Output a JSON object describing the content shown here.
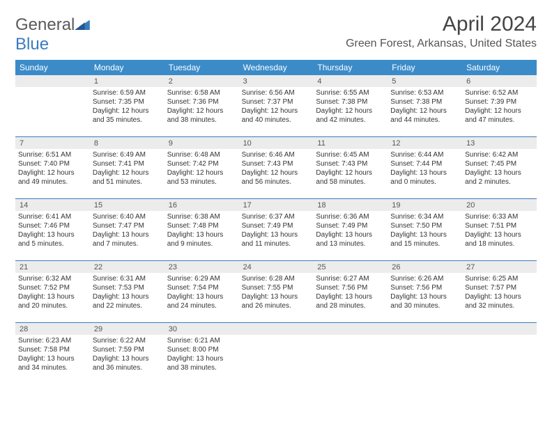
{
  "brand": {
    "name_general": "General",
    "name_blue": "Blue"
  },
  "title": {
    "month": "April 2024",
    "location": "Green Forest, Arkansas, United States"
  },
  "colors": {
    "header_bg": "#3b8bc9",
    "header_fg": "#ffffff",
    "daynum_bg": "#ececec",
    "border": "#3b7bbf",
    "logo_blue": "#3b7bbf",
    "text": "#333333"
  },
  "dayNames": [
    "Sunday",
    "Monday",
    "Tuesday",
    "Wednesday",
    "Thursday",
    "Friday",
    "Saturday"
  ],
  "weeks": [
    [
      {
        "n": "",
        "sr": "",
        "ss": "",
        "dl": ""
      },
      {
        "n": "1",
        "sr": "6:59 AM",
        "ss": "7:35 PM",
        "dl": "12 hours and 35 minutes."
      },
      {
        "n": "2",
        "sr": "6:58 AM",
        "ss": "7:36 PM",
        "dl": "12 hours and 38 minutes."
      },
      {
        "n": "3",
        "sr": "6:56 AM",
        "ss": "7:37 PM",
        "dl": "12 hours and 40 minutes."
      },
      {
        "n": "4",
        "sr": "6:55 AM",
        "ss": "7:38 PM",
        "dl": "12 hours and 42 minutes."
      },
      {
        "n": "5",
        "sr": "6:53 AM",
        "ss": "7:38 PM",
        "dl": "12 hours and 44 minutes."
      },
      {
        "n": "6",
        "sr": "6:52 AM",
        "ss": "7:39 PM",
        "dl": "12 hours and 47 minutes."
      }
    ],
    [
      {
        "n": "7",
        "sr": "6:51 AM",
        "ss": "7:40 PM",
        "dl": "12 hours and 49 minutes."
      },
      {
        "n": "8",
        "sr": "6:49 AM",
        "ss": "7:41 PM",
        "dl": "12 hours and 51 minutes."
      },
      {
        "n": "9",
        "sr": "6:48 AM",
        "ss": "7:42 PM",
        "dl": "12 hours and 53 minutes."
      },
      {
        "n": "10",
        "sr": "6:46 AM",
        "ss": "7:43 PM",
        "dl": "12 hours and 56 minutes."
      },
      {
        "n": "11",
        "sr": "6:45 AM",
        "ss": "7:43 PM",
        "dl": "12 hours and 58 minutes."
      },
      {
        "n": "12",
        "sr": "6:44 AM",
        "ss": "7:44 PM",
        "dl": "13 hours and 0 minutes."
      },
      {
        "n": "13",
        "sr": "6:42 AM",
        "ss": "7:45 PM",
        "dl": "13 hours and 2 minutes."
      }
    ],
    [
      {
        "n": "14",
        "sr": "6:41 AM",
        "ss": "7:46 PM",
        "dl": "13 hours and 5 minutes."
      },
      {
        "n": "15",
        "sr": "6:40 AM",
        "ss": "7:47 PM",
        "dl": "13 hours and 7 minutes."
      },
      {
        "n": "16",
        "sr": "6:38 AM",
        "ss": "7:48 PM",
        "dl": "13 hours and 9 minutes."
      },
      {
        "n": "17",
        "sr": "6:37 AM",
        "ss": "7:49 PM",
        "dl": "13 hours and 11 minutes."
      },
      {
        "n": "18",
        "sr": "6:36 AM",
        "ss": "7:49 PM",
        "dl": "13 hours and 13 minutes."
      },
      {
        "n": "19",
        "sr": "6:34 AM",
        "ss": "7:50 PM",
        "dl": "13 hours and 15 minutes."
      },
      {
        "n": "20",
        "sr": "6:33 AM",
        "ss": "7:51 PM",
        "dl": "13 hours and 18 minutes."
      }
    ],
    [
      {
        "n": "21",
        "sr": "6:32 AM",
        "ss": "7:52 PM",
        "dl": "13 hours and 20 minutes."
      },
      {
        "n": "22",
        "sr": "6:31 AM",
        "ss": "7:53 PM",
        "dl": "13 hours and 22 minutes."
      },
      {
        "n": "23",
        "sr": "6:29 AM",
        "ss": "7:54 PM",
        "dl": "13 hours and 24 minutes."
      },
      {
        "n": "24",
        "sr": "6:28 AM",
        "ss": "7:55 PM",
        "dl": "13 hours and 26 minutes."
      },
      {
        "n": "25",
        "sr": "6:27 AM",
        "ss": "7:56 PM",
        "dl": "13 hours and 28 minutes."
      },
      {
        "n": "26",
        "sr": "6:26 AM",
        "ss": "7:56 PM",
        "dl": "13 hours and 30 minutes."
      },
      {
        "n": "27",
        "sr": "6:25 AM",
        "ss": "7:57 PM",
        "dl": "13 hours and 32 minutes."
      }
    ],
    [
      {
        "n": "28",
        "sr": "6:23 AM",
        "ss": "7:58 PM",
        "dl": "13 hours and 34 minutes."
      },
      {
        "n": "29",
        "sr": "6:22 AM",
        "ss": "7:59 PM",
        "dl": "13 hours and 36 minutes."
      },
      {
        "n": "30",
        "sr": "6:21 AM",
        "ss": "8:00 PM",
        "dl": "13 hours and 38 minutes."
      },
      {
        "n": "",
        "sr": "",
        "ss": "",
        "dl": ""
      },
      {
        "n": "",
        "sr": "",
        "ss": "",
        "dl": ""
      },
      {
        "n": "",
        "sr": "",
        "ss": "",
        "dl": ""
      },
      {
        "n": "",
        "sr": "",
        "ss": "",
        "dl": ""
      }
    ]
  ],
  "labels": {
    "sunrise": "Sunrise: ",
    "sunset": "Sunset: ",
    "daylight": "Daylight: "
  }
}
